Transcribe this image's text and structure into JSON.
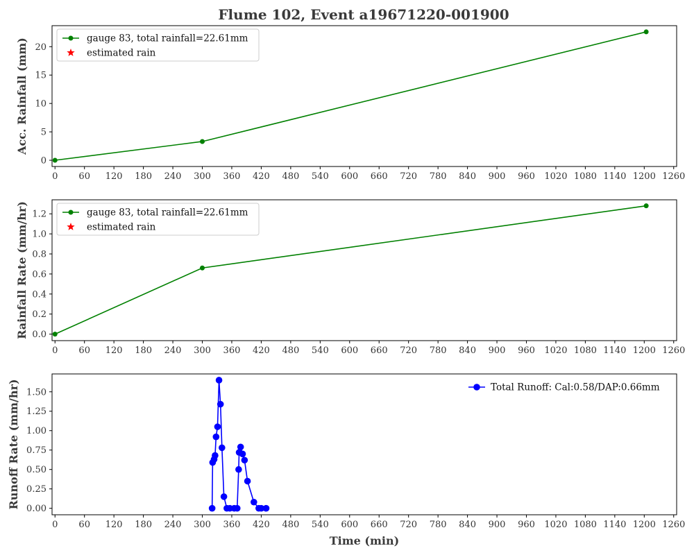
{
  "title": "Flume 102, Event a19671220-001900",
  "colors": {
    "gauge": "#008000",
    "estimated": "#ff0000",
    "runoff": "#0000ff"
  },
  "chart_data": [
    {
      "type": "line",
      "ylabel": "Acc. Rainfall (mm)",
      "xlabel": "",
      "xlim": [
        -6,
        1266
      ],
      "ylim": [
        -1.1,
        23.7
      ],
      "xticks": [
        0,
        60,
        120,
        180,
        240,
        300,
        360,
        420,
        480,
        540,
        600,
        660,
        720,
        780,
        840,
        900,
        960,
        1020,
        1080,
        1140,
        1200,
        1260
      ],
      "yticks": [
        0,
        5,
        10,
        15,
        20
      ],
      "legend": "top-left",
      "legend_entries": [
        "gauge 83, total rainfall=22.61mm",
        "estimated rain"
      ],
      "series": [
        {
          "name": "gauge 83, total rainfall=22.61mm",
          "marker": "circle",
          "x": [
            0,
            300,
            1204
          ],
          "y": [
            0,
            3.3,
            22.61
          ]
        },
        {
          "name": "estimated rain",
          "marker": "star",
          "x": [],
          "y": []
        }
      ]
    },
    {
      "type": "line",
      "ylabel": "Rainfall Rate (mm/hr)",
      "xlabel": "",
      "xlim": [
        -6,
        1266
      ],
      "ylim": [
        -0.065,
        1.34
      ],
      "xticks": [
        0,
        60,
        120,
        180,
        240,
        300,
        360,
        420,
        480,
        540,
        600,
        660,
        720,
        780,
        840,
        900,
        960,
        1020,
        1080,
        1140,
        1200,
        1260
      ],
      "yticks": [
        0.0,
        0.2,
        0.4,
        0.6,
        0.8,
        1.0,
        1.2
      ],
      "legend": "top-left",
      "legend_entries": [
        "gauge 83, total rainfall=22.61mm",
        "estimated rain"
      ],
      "series": [
        {
          "name": "gauge 83, total rainfall=22.61mm",
          "marker": "circle",
          "x": [
            0,
            300,
            1204
          ],
          "y": [
            0,
            0.66,
            1.28
          ]
        },
        {
          "name": "estimated rain",
          "marker": "star",
          "x": [],
          "y": []
        }
      ]
    },
    {
      "type": "line",
      "ylabel": "Runoff Rate (mm/hr)",
      "xlabel": "Time (min)",
      "xlim": [
        -6,
        1266
      ],
      "ylim": [
        -0.083,
        1.73
      ],
      "xticks": [
        0,
        60,
        120,
        180,
        240,
        300,
        360,
        420,
        480,
        540,
        600,
        660,
        720,
        780,
        840,
        900,
        960,
        1020,
        1080,
        1140,
        1200,
        1260
      ],
      "yticks": [
        "0.00",
        "0.25",
        "0.50",
        "0.75",
        "1.00",
        "1.25",
        "1.50"
      ],
      "legend": "top-right",
      "legend_entries": [
        "Total Runoff: Cal:0.58/DAP:0.66mm"
      ],
      "series": [
        {
          "name": "Total Runoff: Cal:0.58/DAP:0.66mm",
          "marker": "circle",
          "x": [
            320,
            321,
            324,
            326,
            328,
            331,
            334,
            337,
            340,
            344,
            350,
            356,
            365,
            371,
            374,
            375,
            378,
            382,
            386,
            392,
            405,
            415,
            420,
            430
          ],
          "y": [
            0,
            0.59,
            0.63,
            0.68,
            0.92,
            1.05,
            1.65,
            1.34,
            0.78,
            0.15,
            0,
            0,
            0,
            0,
            0.5,
            0.72,
            0.79,
            0.7,
            0.62,
            0.35,
            0.08,
            0,
            0,
            0
          ]
        }
      ]
    }
  ]
}
